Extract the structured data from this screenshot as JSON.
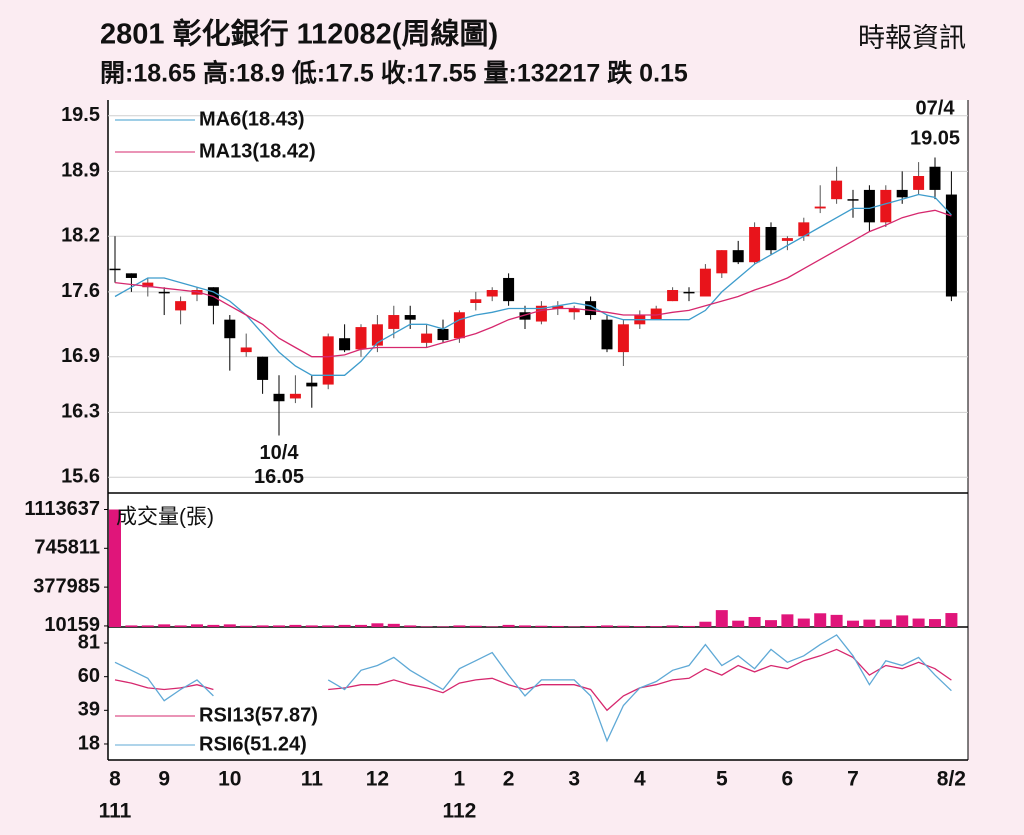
{
  "header": {
    "title": "2801  彰化銀行 112082(周線圖)",
    "source": "時報資訊",
    "quote": "開:18.65 高:18.9 低:17.5 收:17.55 量:132217 跌 0.15"
  },
  "chart_data": [
    {
      "type": "candlestick",
      "up_color": "#e8141b",
      "down_color": "#000000",
      "grid": true,
      "categories": [
        "8",
        null,
        null,
        "9",
        null,
        null,
        null,
        "10",
        null,
        null,
        null,
        null,
        "11",
        null,
        null,
        null,
        "12",
        null,
        null,
        null,
        null,
        "1",
        null,
        null,
        "2",
        null,
        null,
        null,
        "3",
        null,
        null,
        null,
        "4",
        null,
        null,
        null,
        null,
        "5",
        null,
        null,
        null,
        "6",
        null,
        null,
        null,
        "7",
        null,
        null,
        null,
        null,
        null,
        "8/2"
      ],
      "x_sublabels": [
        "111",
        null,
        null,
        null,
        null,
        null,
        null,
        null,
        null,
        null,
        null,
        null,
        null,
        null,
        null,
        null,
        null,
        null,
        null,
        null,
        null,
        "112",
        null,
        null,
        null,
        null,
        null,
        null,
        null,
        null,
        null,
        null,
        null,
        null,
        null,
        null,
        null,
        null,
        null,
        null,
        null,
        null,
        null,
        null,
        null,
        null,
        null,
        null,
        null,
        null,
        null,
        null
      ],
      "open": [
        17.85,
        17.8,
        17.65,
        17.6,
        17.4,
        17.57,
        17.65,
        17.3,
        16.95,
        16.9,
        16.5,
        16.45,
        16.62,
        16.6,
        17.1,
        16.98,
        17.02,
        17.2,
        17.35,
        17.05,
        17.2,
        17.1,
        17.48,
        17.55,
        17.75,
        17.38,
        17.28,
        17.42,
        17.38,
        17.5,
        17.3,
        16.95,
        17.25,
        17.3,
        17.5,
        17.6,
        17.55,
        17.8,
        18.05,
        17.92,
        18.3,
        18.15,
        18.2,
        18.5,
        18.6,
        18.6,
        18.7,
        18.35,
        18.7,
        18.7,
        18.95,
        18.65
      ],
      "high": [
        18.2,
        17.8,
        17.75,
        17.65,
        17.55,
        17.65,
        17.65,
        17.35,
        17.15,
        16.9,
        16.7,
        16.7,
        16.7,
        17.15,
        17.25,
        17.25,
        17.35,
        17.45,
        17.45,
        17.25,
        17.3,
        17.4,
        17.6,
        17.65,
        17.8,
        17.45,
        17.5,
        17.5,
        17.45,
        17.55,
        17.35,
        17.3,
        17.4,
        17.45,
        17.65,
        17.65,
        17.9,
        18.05,
        18.15,
        18.35,
        18.35,
        18.2,
        18.4,
        18.75,
        18.95,
        18.7,
        18.75,
        18.75,
        18.9,
        19.0,
        19.05,
        18.9
      ],
      "low": [
        17.7,
        17.6,
        17.55,
        17.35,
        17.25,
        17.5,
        17.25,
        16.75,
        16.9,
        16.5,
        16.05,
        16.4,
        16.35,
        16.55,
        16.95,
        16.9,
        16.95,
        17.1,
        17.2,
        17.0,
        17.05,
        17.05,
        17.4,
        17.5,
        17.45,
        17.2,
        17.25,
        17.35,
        17.3,
        17.3,
        16.95,
        16.8,
        17.2,
        17.3,
        17.5,
        17.5,
        17.55,
        17.75,
        17.9,
        17.9,
        18.0,
        18.05,
        18.15,
        18.45,
        18.55,
        18.4,
        18.25,
        18.3,
        18.55,
        18.65,
        18.6,
        17.5
      ],
      "close": [
        17.85,
        17.75,
        17.7,
        17.6,
        17.5,
        17.62,
        17.45,
        17.1,
        17.0,
        16.65,
        16.42,
        16.5,
        16.58,
        17.12,
        16.97,
        17.22,
        17.25,
        17.35,
        17.3,
        17.15,
        17.08,
        17.38,
        17.52,
        17.62,
        17.5,
        17.3,
        17.45,
        17.45,
        17.42,
        17.35,
        16.98,
        17.25,
        17.35,
        17.42,
        17.62,
        17.6,
        17.85,
        18.05,
        17.92,
        18.3,
        18.05,
        18.18,
        18.35,
        18.52,
        18.8,
        18.6,
        18.35,
        18.7,
        18.62,
        18.85,
        18.7,
        17.55
      ],
      "series": [
        {
          "name": "MA6(18.43)",
          "color": "#3d9ccc",
          "values": [
            17.55,
            17.65,
            17.75,
            17.75,
            17.7,
            17.65,
            17.6,
            17.5,
            17.35,
            17.15,
            16.95,
            16.8,
            16.7,
            16.7,
            16.7,
            16.85,
            17.05,
            17.15,
            17.25,
            17.25,
            17.2,
            17.3,
            17.35,
            17.38,
            17.42,
            17.42,
            17.42,
            17.45,
            17.48,
            17.45,
            17.35,
            17.3,
            17.3,
            17.3,
            17.3,
            17.3,
            17.4,
            17.6,
            17.75,
            17.9,
            18.0,
            18.1,
            18.2,
            18.3,
            18.4,
            18.5,
            18.5,
            18.55,
            18.6,
            18.65,
            18.62,
            18.43
          ]
        },
        {
          "name": "MA13(18.42)",
          "color": "#d6286e",
          "values": [
            17.7,
            17.68,
            17.66,
            17.64,
            17.62,
            17.6,
            17.55,
            17.45,
            17.35,
            17.25,
            17.1,
            17.0,
            16.9,
            16.9,
            16.92,
            16.98,
            17.0,
            17.0,
            17.0,
            17.0,
            17.05,
            17.1,
            17.15,
            17.22,
            17.3,
            17.35,
            17.4,
            17.42,
            17.42,
            17.4,
            17.38,
            17.35,
            17.35,
            17.35,
            17.38,
            17.4,
            17.45,
            17.5,
            17.55,
            17.62,
            17.68,
            17.75,
            17.85,
            17.95,
            18.05,
            18.15,
            18.25,
            18.32,
            18.4,
            18.45,
            18.48,
            18.42
          ]
        }
      ],
      "annotations": [
        {
          "date": "10/4",
          "value": 16.05,
          "position": "below"
        },
        {
          "date": "07/4",
          "value": 19.05,
          "position": "above"
        }
      ],
      "ylim": [
        15.43,
        19.67
      ],
      "yticks": [
        15.6,
        16.3,
        16.9,
        17.6,
        18.2,
        18.9,
        19.5
      ]
    },
    {
      "type": "bar",
      "name": "成交量(張)",
      "color": "#e0157a",
      "values": [
        1113637,
        15000,
        15000,
        25000,
        15000,
        25000,
        20000,
        25000,
        12000,
        15000,
        15000,
        20000,
        15000,
        15000,
        20000,
        20000,
        35000,
        30000,
        15000,
        5000,
        5000,
        15000,
        12000,
        5000,
        20000,
        15000,
        12000,
        10000,
        5000,
        10000,
        15000,
        12000,
        8000,
        8000,
        15000,
        10000,
        50000,
        160000,
        60000,
        95000,
        65000,
        120000,
        80000,
        130000,
        115000,
        60000,
        70000,
        70000,
        110000,
        80000,
        75000,
        132217
      ],
      "ylim": [
        0,
        1270000
      ],
      "yticks": [
        10159,
        377985,
        745811,
        1113637
      ]
    },
    {
      "type": "line",
      "series": [
        {
          "name": "RSI13(57.87)",
          "color": "#d6286e",
          "values": [
            58,
            56,
            53,
            52,
            53,
            55,
            52,
            null,
            null,
            null,
            null,
            null,
            null,
            52,
            53,
            55,
            55,
            58,
            55,
            53,
            50,
            56,
            58,
            59,
            55,
            52,
            55,
            55,
            55,
            52,
            39,
            48,
            53,
            55,
            58,
            59,
            65,
            61,
            67,
            63,
            67,
            65,
            70,
            73,
            77,
            72,
            61,
            67,
            65,
            69,
            65,
            57.87
          ]
        },
        {
          "name": "RSI6(51.24)",
          "color": "#5fa9d6",
          "values": [
            69,
            64,
            59,
            45,
            52,
            58,
            48,
            null,
            null,
            null,
            null,
            null,
            null,
            58,
            52,
            64,
            67,
            72,
            64,
            58,
            52,
            65,
            70,
            75,
            61,
            48,
            58,
            58,
            58,
            48,
            20,
            42,
            53,
            57,
            64,
            67,
            80,
            67,
            73,
            65,
            77,
            69,
            73,
            80,
            86,
            73,
            55,
            70,
            67,
            72,
            61,
            51.24
          ]
        }
      ],
      "ylim": [
        8,
        91
      ],
      "yticks": [
        18,
        39,
        60,
        81
      ]
    }
  ]
}
